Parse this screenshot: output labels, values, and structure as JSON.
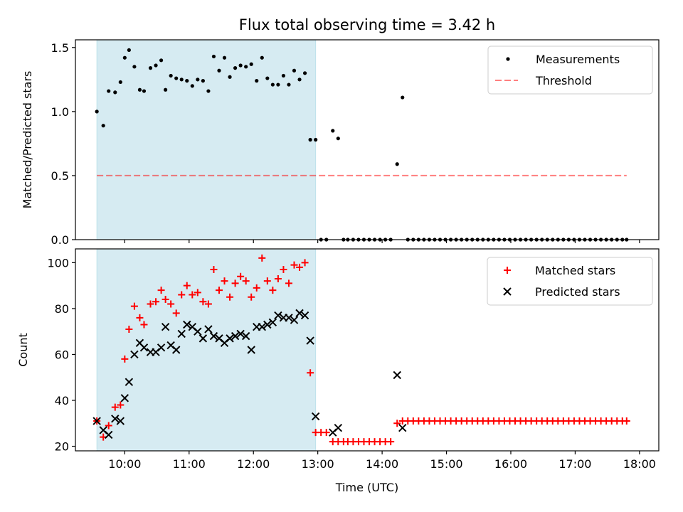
{
  "title": "Flux total observing time = 3.42 h",
  "colors": {
    "shade": "#add8e6",
    "measurements": "#000000",
    "threshold": "#ff0000",
    "matched": "#ff0000",
    "predicted": "#000000"
  },
  "chart_data": [
    {
      "type": "scatter",
      "panel": "top",
      "title": "Flux total observing time = 3.42 h",
      "xlabel": "",
      "ylabel": "Matched/Predicted stars",
      "xlim": [
        "09:14",
        "18:18"
      ],
      "ylim": [
        0,
        1.56
      ],
      "yticks": [
        0.0,
        0.5,
        1.0,
        1.5
      ],
      "ytick_labels": [
        "0.0",
        "0.5",
        "1.0",
        "1.5"
      ],
      "xticks": [
        "10:00",
        "11:00",
        "12:00",
        "13:00",
        "14:00",
        "15:00",
        "16:00",
        "17:00",
        "18:00"
      ],
      "shaded_span": [
        "09:34",
        "12:58"
      ],
      "legend_position": "top-right",
      "legend": [
        "Measurements",
        "Threshold"
      ],
      "threshold": {
        "name": "Threshold",
        "y": 0.5,
        "x_range": [
          "09:34",
          "17:48"
        ]
      },
      "series": [
        {
          "name": "Measurements",
          "marker": "dot",
          "points": [
            [
              "09:34",
              1.0
            ],
            [
              "09:40",
              0.89
            ],
            [
              "09:45",
              1.16
            ],
            [
              "09:51",
              1.15
            ],
            [
              "09:56",
              1.23
            ],
            [
              "10:00",
              1.42
            ],
            [
              "10:04",
              1.48
            ],
            [
              "10:09",
              1.35
            ],
            [
              "10:14",
              1.17
            ],
            [
              "10:18",
              1.16
            ],
            [
              "10:24",
              1.34
            ],
            [
              "10:29",
              1.36
            ],
            [
              "10:34",
              1.4
            ],
            [
              "10:38",
              1.17
            ],
            [
              "10:43",
              1.28
            ],
            [
              "10:48",
              1.26
            ],
            [
              "10:53",
              1.25
            ],
            [
              "10:58",
              1.24
            ],
            [
              "11:03",
              1.2
            ],
            [
              "11:08",
              1.25
            ],
            [
              "11:13",
              1.24
            ],
            [
              "11:18",
              1.16
            ],
            [
              "11:23",
              1.43
            ],
            [
              "11:28",
              1.32
            ],
            [
              "11:33",
              1.42
            ],
            [
              "11:38",
              1.27
            ],
            [
              "11:43",
              1.34
            ],
            [
              "11:48",
              1.36
            ],
            [
              "11:53",
              1.35
            ],
            [
              "11:58",
              1.37
            ],
            [
              "12:03",
              1.24
            ],
            [
              "12:08",
              1.42
            ],
            [
              "12:13",
              1.26
            ],
            [
              "12:18",
              1.21
            ],
            [
              "12:23",
              1.21
            ],
            [
              "12:28",
              1.28
            ],
            [
              "12:33",
              1.21
            ],
            [
              "12:38",
              1.32
            ],
            [
              "12:43",
              1.25
            ],
            [
              "12:48",
              1.3
            ],
            [
              "12:53",
              0.78
            ],
            [
              "12:58",
              0.78
            ],
            [
              "13:03",
              0.0
            ],
            [
              "13:08",
              0.0
            ],
            [
              "13:14",
              0.85
            ],
            [
              "13:19",
              0.79
            ],
            [
              "13:24",
              0.0
            ],
            [
              "13:28",
              0.0
            ],
            [
              "13:33",
              0.0
            ],
            [
              "13:38",
              0.0
            ],
            [
              "13:43",
              0.0
            ],
            [
              "13:48",
              0.0
            ],
            [
              "13:53",
              0.0
            ],
            [
              "13:58",
              0.0
            ],
            [
              "14:03",
              0.0
            ],
            [
              "14:08",
              0.0
            ],
            [
              "14:14",
              0.59
            ],
            [
              "14:19",
              1.11
            ],
            [
              "14:24",
              0.0
            ],
            [
              "14:29",
              0.0
            ],
            [
              "14:34",
              0.0
            ],
            [
              "14:39",
              0.0
            ],
            [
              "14:44",
              0.0
            ],
            [
              "14:49",
              0.0
            ],
            [
              "14:54",
              0.0
            ],
            [
              "14:59",
              0.0
            ],
            [
              "15:04",
              0.0
            ],
            [
              "15:09",
              0.0
            ],
            [
              "15:14",
              0.0
            ],
            [
              "15:19",
              0.0
            ],
            [
              "15:24",
              0.0
            ],
            [
              "15:29",
              0.0
            ],
            [
              "15:34",
              0.0
            ],
            [
              "15:39",
              0.0
            ],
            [
              "15:44",
              0.0
            ],
            [
              "15:49",
              0.0
            ],
            [
              "15:54",
              0.0
            ],
            [
              "15:59",
              0.0
            ],
            [
              "16:04",
              0.0
            ],
            [
              "16:09",
              0.0
            ],
            [
              "16:14",
              0.0
            ],
            [
              "16:19",
              0.0
            ],
            [
              "16:24",
              0.0
            ],
            [
              "16:29",
              0.0
            ],
            [
              "16:34",
              0.0
            ],
            [
              "16:39",
              0.0
            ],
            [
              "16:44",
              0.0
            ],
            [
              "16:49",
              0.0
            ],
            [
              "16:54",
              0.0
            ],
            [
              "16:59",
              0.0
            ],
            [
              "17:04",
              0.0
            ],
            [
              "17:09",
              0.0
            ],
            [
              "17:14",
              0.0
            ],
            [
              "17:19",
              0.0
            ],
            [
              "17:24",
              0.0
            ],
            [
              "17:29",
              0.0
            ],
            [
              "17:34",
              0.0
            ],
            [
              "17:39",
              0.0
            ],
            [
              "17:44",
              0.0
            ],
            [
              "17:48",
              0.0
            ]
          ]
        }
      ]
    },
    {
      "type": "scatter",
      "panel": "bottom",
      "xlabel": "Time (UTC)",
      "ylabel": "Count",
      "xlim": [
        "09:14",
        "18:18"
      ],
      "ylim": [
        18,
        106
      ],
      "yticks": [
        20,
        40,
        60,
        80,
        100
      ],
      "ytick_labels": [
        "20",
        "40",
        "60",
        "80",
        "100"
      ],
      "xticks": [
        "10:00",
        "11:00",
        "12:00",
        "13:00",
        "14:00",
        "15:00",
        "16:00",
        "17:00",
        "18:00"
      ],
      "xtick_labels": [
        "10:00",
        "11:00",
        "12:00",
        "13:00",
        "14:00",
        "15:00",
        "16:00",
        "17:00",
        "18:00"
      ],
      "shaded_span": [
        "09:34",
        "12:58"
      ],
      "legend_position": "top-right",
      "legend": [
        "Matched stars",
        "Predicted stars"
      ],
      "series": [
        {
          "name": "Matched stars",
          "marker": "plus",
          "points": [
            [
              "09:34",
              31
            ],
            [
              "09:40",
              24
            ],
            [
              "09:45",
              29
            ],
            [
              "09:51",
              37
            ],
            [
              "09:56",
              38
            ],
            [
              "10:00",
              58
            ],
            [
              "10:04",
              71
            ],
            [
              "10:09",
              81
            ],
            [
              "10:14",
              76
            ],
            [
              "10:18",
              73
            ],
            [
              "10:24",
              82
            ],
            [
              "10:29",
              83
            ],
            [
              "10:34",
              88
            ],
            [
              "10:38",
              84
            ],
            [
              "10:43",
              82
            ],
            [
              "10:48",
              78
            ],
            [
              "10:53",
              86
            ],
            [
              "10:58",
              90
            ],
            [
              "11:03",
              86
            ],
            [
              "11:08",
              87
            ],
            [
              "11:13",
              83
            ],
            [
              "11:18",
              82
            ],
            [
              "11:23",
              97
            ],
            [
              "11:28",
              88
            ],
            [
              "11:33",
              92
            ],
            [
              "11:38",
              85
            ],
            [
              "11:43",
              91
            ],
            [
              "11:48",
              94
            ],
            [
              "11:53",
              92
            ],
            [
              "11:58",
              85
            ],
            [
              "12:03",
              89
            ],
            [
              "12:08",
              102
            ],
            [
              "12:13",
              92
            ],
            [
              "12:18",
              88
            ],
            [
              "12:23",
              93
            ],
            [
              "12:28",
              97
            ],
            [
              "12:33",
              91
            ],
            [
              "12:38",
              99
            ],
            [
              "12:43",
              98
            ],
            [
              "12:48",
              100
            ],
            [
              "12:53",
              52
            ],
            [
              "12:58",
              26
            ],
            [
              "13:03",
              26
            ],
            [
              "13:08",
              26
            ],
            [
              "13:14",
              22
            ],
            [
              "13:19",
              22
            ],
            [
              "13:24",
              22
            ],
            [
              "13:28",
              22
            ],
            [
              "13:33",
              22
            ],
            [
              "13:38",
              22
            ],
            [
              "13:43",
              22
            ],
            [
              "13:48",
              22
            ],
            [
              "13:53",
              22
            ],
            [
              "13:58",
              22
            ],
            [
              "14:03",
              22
            ],
            [
              "14:08",
              22
            ],
            [
              "14:14",
              30
            ],
            [
              "14:19",
              31
            ],
            [
              "14:24",
              31
            ],
            [
              "14:29",
              31
            ],
            [
              "14:34",
              31
            ],
            [
              "14:39",
              31
            ],
            [
              "14:44",
              31
            ],
            [
              "14:49",
              31
            ],
            [
              "14:54",
              31
            ],
            [
              "14:59",
              31
            ],
            [
              "15:04",
              31
            ],
            [
              "15:09",
              31
            ],
            [
              "15:14",
              31
            ],
            [
              "15:19",
              31
            ],
            [
              "15:24",
              31
            ],
            [
              "15:29",
              31
            ],
            [
              "15:34",
              31
            ],
            [
              "15:39",
              31
            ],
            [
              "15:44",
              31
            ],
            [
              "15:49",
              31
            ],
            [
              "15:54",
              31
            ],
            [
              "15:59",
              31
            ],
            [
              "16:04",
              31
            ],
            [
              "16:09",
              31
            ],
            [
              "16:14",
              31
            ],
            [
              "16:19",
              31
            ],
            [
              "16:24",
              31
            ],
            [
              "16:29",
              31
            ],
            [
              "16:34",
              31
            ],
            [
              "16:39",
              31
            ],
            [
              "16:44",
              31
            ],
            [
              "16:49",
              31
            ],
            [
              "16:54",
              31
            ],
            [
              "16:59",
              31
            ],
            [
              "17:04",
              31
            ],
            [
              "17:09",
              31
            ],
            [
              "17:14",
              31
            ],
            [
              "17:19",
              31
            ],
            [
              "17:24",
              31
            ],
            [
              "17:29",
              31
            ],
            [
              "17:34",
              31
            ],
            [
              "17:39",
              31
            ],
            [
              "17:44",
              31
            ],
            [
              "17:48",
              31
            ]
          ]
        },
        {
          "name": "Predicted stars",
          "marker": "x",
          "points": [
            [
              "09:34",
              31
            ],
            [
              "09:40",
              27
            ],
            [
              "09:45",
              25
            ],
            [
              "09:51",
              32
            ],
            [
              "09:56",
              31
            ],
            [
              "10:00",
              41
            ],
            [
              "10:04",
              48
            ],
            [
              "10:09",
              60
            ],
            [
              "10:14",
              65
            ],
            [
              "10:18",
              63
            ],
            [
              "10:24",
              61
            ],
            [
              "10:29",
              61
            ],
            [
              "10:34",
              63
            ],
            [
              "10:38",
              72
            ],
            [
              "10:43",
              64
            ],
            [
              "10:48",
              62
            ],
            [
              "10:53",
              69
            ],
            [
              "10:58",
              73
            ],
            [
              "11:03",
              72
            ],
            [
              "11:08",
              70
            ],
            [
              "11:13",
              67
            ],
            [
              "11:18",
              71
            ],
            [
              "11:23",
              68
            ],
            [
              "11:28",
              67
            ],
            [
              "11:33",
              65
            ],
            [
              "11:38",
              67
            ],
            [
              "11:43",
              68
            ],
            [
              "11:48",
              69
            ],
            [
              "11:53",
              68
            ],
            [
              "11:58",
              62
            ],
            [
              "12:03",
              72
            ],
            [
              "12:08",
              72
            ],
            [
              "12:13",
              73
            ],
            [
              "12:18",
              74
            ],
            [
              "12:23",
              77
            ],
            [
              "12:28",
              76
            ],
            [
              "12:33",
              76
            ],
            [
              "12:38",
              75
            ],
            [
              "12:43",
              78
            ],
            [
              "12:48",
              77
            ],
            [
              "12:53",
              66
            ],
            [
              "12:58",
              33
            ],
            [
              "13:14",
              26
            ],
            [
              "13:19",
              28
            ],
            [
              "14:14",
              51
            ],
            [
              "14:19",
              28
            ]
          ]
        }
      ]
    }
  ]
}
